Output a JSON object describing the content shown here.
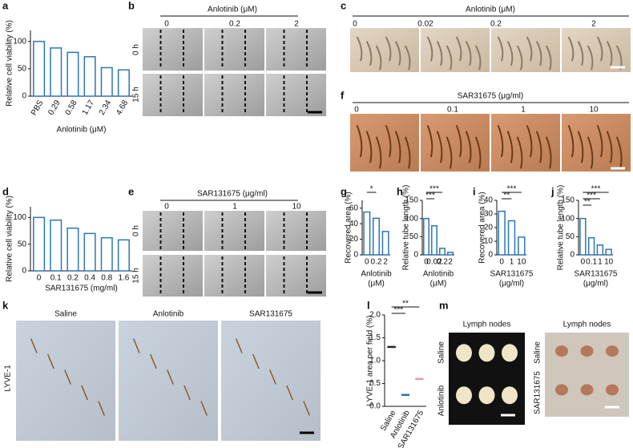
{
  "letters": [
    "a",
    "b",
    "c",
    "d",
    "e",
    "f",
    "g",
    "h",
    "i",
    "j",
    "k",
    "l",
    "m"
  ],
  "panels": {
    "b": {
      "title": "Anlotinib (μM)",
      "columns": [
        "0",
        "0.2",
        "2"
      ],
      "rows": [
        "0 h",
        "15 h"
      ]
    },
    "c": {
      "title": "Anlotinib (μM)",
      "columns": [
        "0",
        "0.02",
        "0.2",
        "2"
      ]
    },
    "e": {
      "title": "SAR131675 (μg/ml)",
      "columns": [
        "0",
        "1",
        "10"
      ],
      "rows": [
        "0 h",
        "15 h"
      ]
    },
    "f": {
      "title": "SAR31675 (μg/ml)",
      "columns": [
        "0",
        "0.1",
        "1",
        "10"
      ]
    },
    "k": {
      "columns": [
        "Saline",
        "Anlotinib",
        "SAR131675"
      ],
      "row": "LYVE-1"
    },
    "m": [
      {
        "title": "Lymph nodes",
        "rows": [
          "Saline",
          "Anlotinib"
        ]
      },
      {
        "title": "Lymph nodes",
        "rows": [
          "Saline",
          "SAR131675"
        ]
      }
    ]
  },
  "chart_data": [
    {
      "type": "bar",
      "ylabel": "Relative cell viability (%)",
      "xlabel": [
        "Anlotinib (μM)"
      ],
      "categories": [
        "PBS",
        "0.29",
        "0.58",
        "1.17",
        "2.34",
        "4.68"
      ],
      "values": [
        100,
        88,
        80,
        72,
        52,
        48
      ],
      "color": "#2e75b6",
      "ylim": [
        0,
        120
      ],
      "yticks": [
        0,
        50,
        100
      ]
    },
    {
      "type": "bar",
      "ylabel": "Relative cell viability (%)",
      "xlabel": [
        "SAR131675 (mg/ml)"
      ],
      "categories": [
        "0",
        "0.1",
        "0.2",
        "0.4",
        "0.8",
        "1.6"
      ],
      "values": [
        100,
        95,
        80,
        70,
        62,
        58
      ],
      "color": "#2e75b6",
      "ylim": [
        0,
        120
      ],
      "yticks": [
        0,
        50,
        100
      ]
    },
    {
      "type": "bar",
      "ylabel": "Recovered area (%)",
      "xlabel": [
        "Anlotinib",
        "(μM)"
      ],
      "categories": [
        "0",
        "0.2",
        "2"
      ],
      "values": [
        55,
        47,
        30
      ],
      "color": "#2e75b6",
      "ylim": [
        0,
        70
      ],
      "yticks": [
        0,
        20,
        40,
        60
      ],
      "annotations": [
        "*"
      ]
    },
    {
      "type": "bar",
      "ylabel": "Relative tube length (%)",
      "xlabel": [
        "Anlotinib",
        "(μM)"
      ],
      "categories": [
        "0",
        "0.02",
        "0.2",
        "2"
      ],
      "values": [
        100,
        80,
        18,
        7
      ],
      "color": "#2e75b6",
      "ylim": [
        0,
        150
      ],
      "yticks": [
        0,
        50,
        100,
        150
      ],
      "annotations": [
        "***",
        "***"
      ]
    },
    {
      "type": "bar",
      "ylabel": "Recovered area (%)",
      "xlabel": [
        "SAR131675",
        "(μg/ml)"
      ],
      "categories": [
        "0",
        "1",
        "10"
      ],
      "values": [
        32,
        25,
        13
      ],
      "color": "#2e75b6",
      "ylim": [
        0,
        40
      ],
      "yticks": [
        0,
        10,
        20,
        30,
        40
      ],
      "annotations": [
        "**",
        "***"
      ]
    },
    {
      "type": "bar",
      "ylabel": "Relative tube length (%)",
      "xlabel": [
        "SAR131675",
        "(μg/ml)"
      ],
      "categories": [
        "0",
        "0.1",
        "1",
        "10"
      ],
      "values": [
        100,
        47,
        27,
        15
      ],
      "color": "#2e75b6",
      "ylim": [
        0,
        150
      ],
      "yticks": [
        0,
        50,
        100,
        150
      ],
      "annotations": [
        "**",
        "***",
        "***"
      ]
    },
    {
      "type": "dotplot",
      "ylabel": "LYVE-1 area per field (%)",
      "categories": [
        "Saline",
        "Anlotinib",
        "SAR131675"
      ],
      "values": [
        1.3,
        0.25,
        0.6
      ],
      "colors": [
        "#222222",
        "#2e75b6",
        "#e89aa6"
      ],
      "ylim": [
        0,
        2
      ],
      "yticks": [
        {
          "value": 0,
          "label": "0.0"
        },
        {
          "value": 0.5,
          "label": "0.5"
        },
        {
          "value": 1,
          "label": "1.0"
        },
        {
          "value": 1.5,
          "label": "1.5"
        },
        {
          "value": 2,
          "label": "2.0"
        }
      ],
      "annotations": [
        "***",
        "**"
      ]
    }
  ]
}
